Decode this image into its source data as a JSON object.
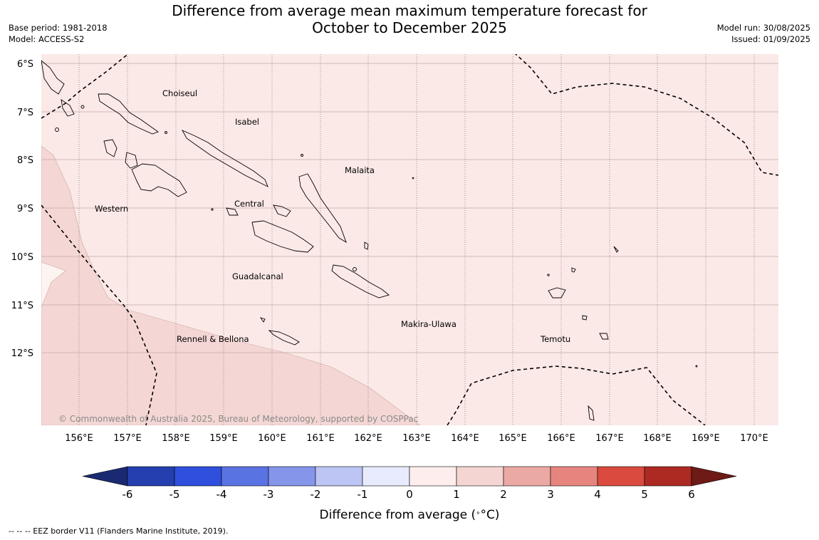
{
  "header": {
    "title_line1": "Difference from average mean maximum temperature forecast for",
    "title_line2": "October to December 2025",
    "base_period": "Base period: 1981-2018",
    "model": "Model: ACCESS-S2",
    "model_run": "Model run: 30/08/2025",
    "issued": "Issued: 01/09/2025"
  },
  "map": {
    "lat_labels": [
      "6°S",
      "7°S",
      "8°S",
      "9°S",
      "10°S",
      "11°S",
      "12°S"
    ],
    "lon_labels": [
      "156°E",
      "157°E",
      "158°E",
      "159°E",
      "160°E",
      "161°E",
      "162°E",
      "163°E",
      "164°E",
      "165°E",
      "166°E",
      "167°E",
      "168°E",
      "169°E",
      "170°E"
    ],
    "provinces": [
      "Choiseul",
      "Isabel",
      "Malaita",
      "Western",
      "Central",
      "Guadalcanal",
      "Makira-Ulawa",
      "Rennell & Bellona",
      "Temotu"
    ],
    "copyright": "© Commonwealth of Australia 2025, Bureau of Meteorology, supported by COSPPac",
    "background_color": "#fbe9e7",
    "warmer_band_color": "#f4d7d4",
    "cooler_band_color": "#fdf3f1",
    "fill_categories": [
      "0 to 1",
      "1 to 2"
    ]
  },
  "colorbar": {
    "ticks": [
      "-6",
      "-5",
      "-4",
      "-3",
      "-2",
      "-1",
      "0",
      "1",
      "2",
      "3",
      "4",
      "5",
      "6"
    ],
    "colors": [
      "#1a2a72",
      "#2440b0",
      "#2f4fdc",
      "#5a73e2",
      "#8495ea",
      "#bcc5f3",
      "#e8ebfd",
      "#fdeeed",
      "#f4d5d2",
      "#eba9a4",
      "#e6857e",
      "#da4a3e",
      "#ac2a22",
      "#6e1a16"
    ],
    "label": "Difference from average (",
    "label_unit": "°C)"
  },
  "footnote": "--  --  -- EEZ border V11 (Flanders Marine Institute, 2019)."
}
